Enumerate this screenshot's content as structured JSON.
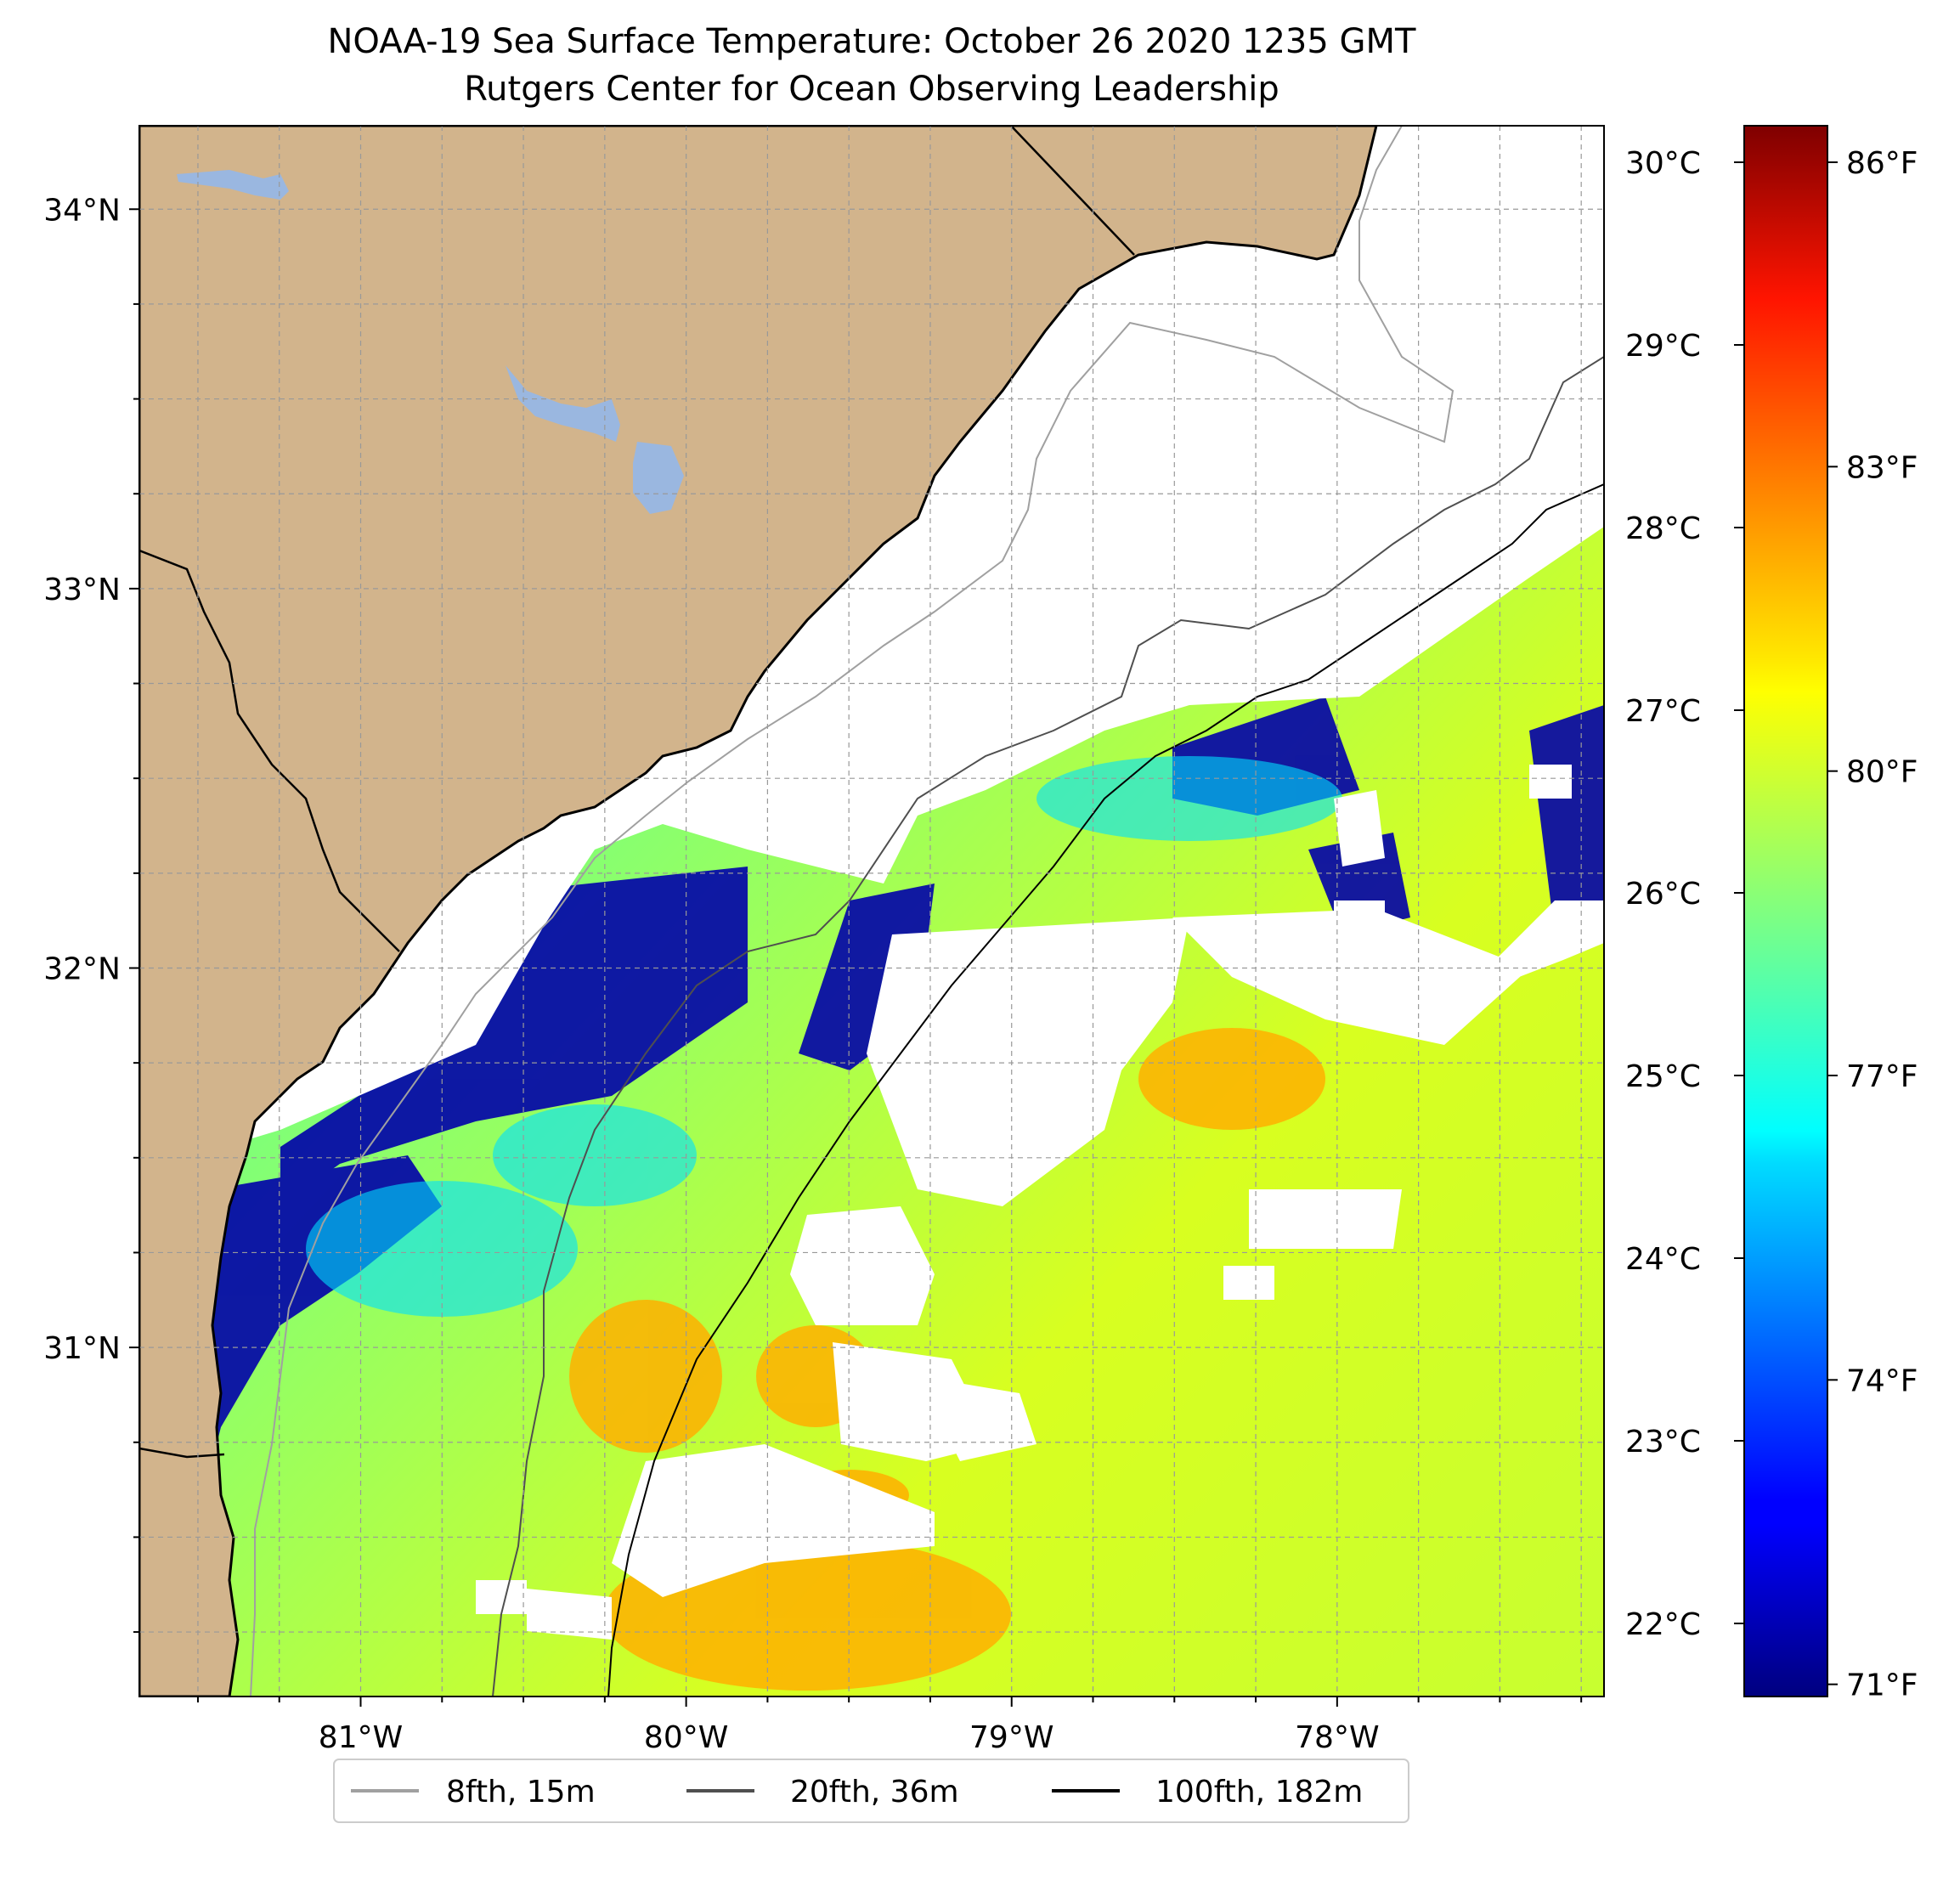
{
  "title": {
    "line1": "NOAA-19 Sea Surface Temperature: October 26 2020 1235 GMT",
    "line2": "Rutgers Center for Ocean Observing Leadership"
  },
  "map": {
    "lon_range": [
      -81.68,
      -77.18
    ],
    "lat_range": [
      30.08,
      34.22
    ],
    "lon_ticks": [
      {
        "value": -81,
        "label": "81°W"
      },
      {
        "value": -80,
        "label": "80°W"
      },
      {
        "value": -79,
        "label": "79°W"
      },
      {
        "value": -78,
        "label": "78°W"
      }
    ],
    "lat_ticks": [
      {
        "value": 31,
        "label": "31°N"
      },
      {
        "value": 32,
        "label": "32°N"
      },
      {
        "value": 33,
        "label": "33°N"
      },
      {
        "value": 34,
        "label": "34°N"
      }
    ],
    "gridlines": "dashed, every 0.25°",
    "colors": {
      "land": "#d2b48c",
      "lakes": "#9ab7e0",
      "cloud_mask": "#ffffff",
      "coastline": "#000000",
      "isobath_8fth": "#a0a0a0",
      "isobath_20fth": "#4f4f4f",
      "isobath_100fth": "#000000"
    }
  },
  "colorbar": {
    "colormap": "jet",
    "celsius_ticks": [
      "22°C",
      "23°C",
      "24°C",
      "25°C",
      "26°C",
      "27°C",
      "28°C",
      "29°C",
      "30°C"
    ],
    "fahrenheit_ticks": [
      "71°F",
      "74°F",
      "77°F",
      "80°F",
      "83°F",
      "86°F"
    ],
    "range_c": [
      21.6,
      30.2
    ]
  },
  "legend": {
    "placement": "bottom-center",
    "items": [
      {
        "label": "8fth, 15m",
        "color": "#a0a0a0"
      },
      {
        "label": "20fth, 36m",
        "color": "#4f4f4f"
      },
      {
        "label": "100fth, 182m",
        "color": "#000000"
      }
    ]
  }
}
